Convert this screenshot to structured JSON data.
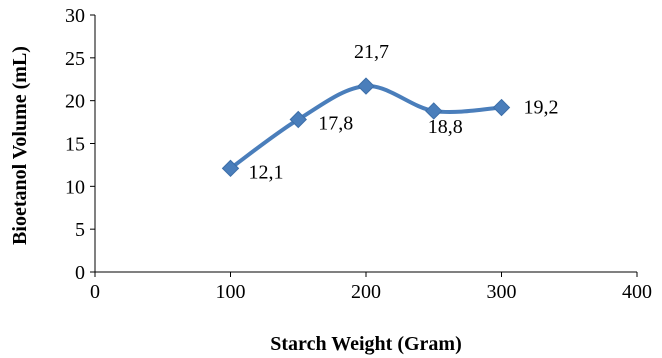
{
  "chart_data": {
    "type": "line",
    "smooth": true,
    "xlabel": "Starch Weight (Gram)",
    "ylabel": "Bioetanol Volume (mL)",
    "xlim": [
      0,
      400
    ],
    "ylim": [
      0,
      30
    ],
    "x_ticks": [
      0,
      100,
      200,
      300,
      400
    ],
    "y_ticks": [
      0,
      5,
      10,
      15,
      20,
      25,
      30
    ],
    "x_tick_labels": [
      "0",
      "100",
      "200",
      "300",
      "400"
    ],
    "y_tick_labels": [
      "0",
      "5",
      "10",
      "15",
      "20",
      "25",
      "30"
    ],
    "grid": false,
    "legend": "none",
    "series_color": "#4a7ebb",
    "series": [
      {
        "x": [
          100,
          150,
          200,
          250,
          300
        ],
        "values": [
          12.1,
          17.8,
          21.7,
          18.8,
          19.2
        ],
        "labels": [
          "12,1",
          "17,8",
          "21,7",
          "18,8",
          "19,2"
        ]
      }
    ]
  }
}
